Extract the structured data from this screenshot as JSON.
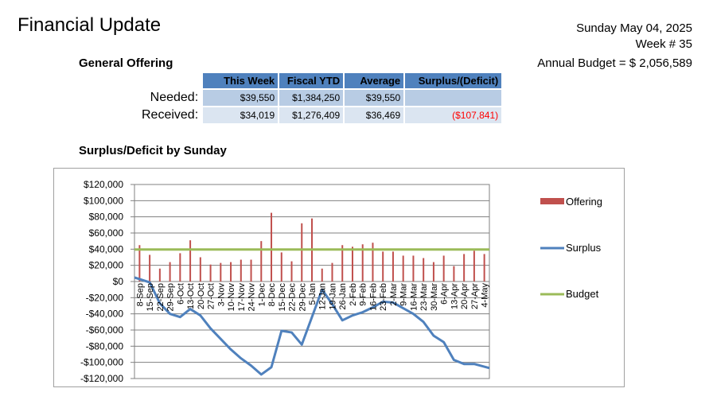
{
  "header": {
    "title": "Financial Update",
    "date": "Sunday May 04, 2025",
    "week": "Week # 35",
    "annual_budget": "Annual Budget = $ 2,056,589"
  },
  "offering_section": {
    "heading": "General Offering",
    "columns": [
      "This Week",
      "Fiscal YTD",
      "Average",
      "Surplus/(Deficit)"
    ],
    "rows": [
      {
        "label": "Needed:",
        "this_week": "$39,550",
        "fiscal_ytd": "$1,384,250",
        "average": "$39,550",
        "surplus": ""
      },
      {
        "label": "Received:",
        "this_week": "$34,019",
        "fiscal_ytd": "$1,276,409",
        "average": "$36,469",
        "surplus": "($107,841)"
      }
    ]
  },
  "chart_section": {
    "heading": "Surplus/Deficit by Sunday"
  },
  "colors": {
    "offering": "#c0504d",
    "surplus": "#4f81bd",
    "budget": "#9bbb59",
    "table_header": "#4f81bd",
    "needed_row": "#b8cce4",
    "received_row": "#dbe5f1",
    "deficit_text": "#ff0000"
  },
  "chart_data": {
    "type": "bar",
    "categories": [
      "8-Sep",
      "15-Sep",
      "22-Sep",
      "29-Sep",
      "6-Oct",
      "13-Oct",
      "20-Oct",
      "27-Oct",
      "3-Nov",
      "10-Nov",
      "17-Nov",
      "24-Nov",
      "1-Dec",
      "8-Dec",
      "15-Dec",
      "22-Dec",
      "29-Dec",
      "5-Jan",
      "12-Jan",
      "19-Jan",
      "26-Jan",
      "2-Feb",
      "9-Feb",
      "16-Feb",
      "23-Feb",
      "2-Mar",
      "9-Mar",
      "16-Mar",
      "23-Mar",
      "30-Mar",
      "6-Apr",
      "13-Apr",
      "20-Apr",
      "27-Apr",
      "4-May"
    ],
    "series": [
      {
        "name": "Offering",
        "type": "bar",
        "values": [
          45000,
          33000,
          16000,
          24000,
          35000,
          51000,
          30000,
          21000,
          23000,
          24000,
          27000,
          27000,
          50000,
          85000,
          36000,
          25000,
          72000,
          78000,
          16000,
          23000,
          45000,
          43000,
          46000,
          48000,
          37000,
          37000,
          32000,
          32000,
          29000,
          24000,
          32000,
          19000,
          34000,
          38000,
          34000
        ]
      },
      {
        "name": "Surplus",
        "type": "line",
        "values": [
          5000,
          -1000,
          -27000,
          -40000,
          -44000,
          -34000,
          -42000,
          -58000,
          -71000,
          -84000,
          -95000,
          -104000,
          -115000,
          -106000,
          -61000,
          -63000,
          -78000,
          -44000,
          -10000,
          -28000,
          -48000,
          -42000,
          -38000,
          -32000,
          -25000,
          -26000,
          -33000,
          -40000,
          -50000,
          -67000,
          -75000,
          -97000,
          -102000,
          -102000,
          -107000
        ]
      },
      {
        "name": "Budget",
        "type": "line",
        "values": [
          39550,
          39550,
          39550,
          39550,
          39550,
          39550,
          39550,
          39550,
          39550,
          39550,
          39550,
          39550,
          39550,
          39550,
          39550,
          39550,
          39550,
          39550,
          39550,
          39550,
          39550,
          39550,
          39550,
          39550,
          39550,
          39550,
          39550,
          39550,
          39550,
          39550,
          39550,
          39550,
          39550,
          39550,
          39550
        ]
      }
    ],
    "ylim": [
      -120000,
      120000
    ],
    "ytick_step": 20000,
    "ytick_labels": [
      "-$120,000",
      "-$100,000",
      "-$80,000",
      "-$60,000",
      "-$40,000",
      "-$20,000",
      "$0",
      "$20,000",
      "$40,000",
      "$60,000",
      "$80,000",
      "$100,000",
      "$120,000"
    ],
    "grid": "horizontal",
    "legend_position": "right"
  }
}
